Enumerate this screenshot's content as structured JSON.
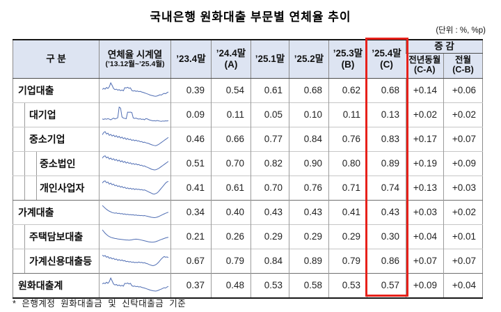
{
  "title": "국내은행 원화대출 부문별 연체율 추이",
  "unit_note": "(단위 : %, %p)",
  "footnote": "* 은행계정 원화대출금 및 신탁대출금 기준",
  "colors": {
    "header_bg": "#dde4f2",
    "highlight_red": "#e7211a",
    "spark_line": "#4f6db3",
    "table_border_dark": "#161616"
  },
  "table": {
    "headers": {
      "gubun": "구  분",
      "timeseries_line1": "연체율 시계열",
      "timeseries_line2": "(’13.12월~’25.4월)",
      "c234": "’23.4말",
      "c244_1": "’24.4말",
      "c244_2": "(A)",
      "c251": "’25.1말",
      "c252": "’25.2말",
      "c253_1": "’25.3말",
      "c253_2": "(B)",
      "c254_1": "’25.4말",
      "c254_2": "(C)",
      "change": "증 감",
      "yoy_1": "전년동월",
      "yoy_2": "(C-A)",
      "mom_1": "전월",
      "mom_2": "(C-B)"
    },
    "rows": [
      {
        "label": "기업대출",
        "level": 0,
        "group_start": false,
        "values": [
          "0.39",
          "0.54",
          "0.61",
          "0.68",
          "0.62",
          "0.68",
          "+0.14",
          "+0.06"
        ]
      },
      {
        "label": "대기업",
        "level": 1,
        "group_start": false,
        "values": [
          "0.09",
          "0.11",
          "0.05",
          "0.10",
          "0.11",
          "0.13",
          "+0.02",
          "+0.02"
        ]
      },
      {
        "label": "중소기업",
        "level": 1,
        "group_start": false,
        "values": [
          "0.46",
          "0.66",
          "0.77",
          "0.84",
          "0.76",
          "0.83",
          "+0.17",
          "+0.07"
        ]
      },
      {
        "label": "중소법인",
        "level": 2,
        "group_start": false,
        "values": [
          "0.51",
          "0.70",
          "0.82",
          "0.90",
          "0.80",
          "0.89",
          "+0.19",
          "+0.09"
        ]
      },
      {
        "label": "개인사업자",
        "level": 2,
        "group_start": false,
        "values": [
          "0.41",
          "0.61",
          "0.70",
          "0.76",
          "0.71",
          "0.74",
          "+0.13",
          "+0.03"
        ]
      },
      {
        "label": "가계대출",
        "level": 0,
        "group_start": true,
        "values": [
          "0.34",
          "0.40",
          "0.43",
          "0.43",
          "0.41",
          "0.43",
          "+0.03",
          "+0.02"
        ]
      },
      {
        "label": "주택담보대출",
        "level": 1,
        "group_start": false,
        "values": [
          "0.21",
          "0.26",
          "0.29",
          "0.29",
          "0.29",
          "0.30",
          "+0.04",
          "+0.01"
        ]
      },
      {
        "label": "가계신용대출등",
        "level": 1,
        "group_start": false,
        "values": [
          "0.67",
          "0.79",
          "0.84",
          "0.89",
          "0.79",
          "0.86",
          "+0.07",
          "+0.07"
        ]
      },
      {
        "label": "원화대출계",
        "level": 0,
        "group_start": true,
        "values": [
          "0.37",
          "0.48",
          "0.53",
          "0.58",
          "0.53",
          "0.57",
          "+0.09",
          "+0.04"
        ]
      }
    ],
    "sparklines_note": "normalized 0-100 approximate monthly delinquency-rate shapes, Dec 2013 - Apr 2025",
    "sparklines": [
      [
        56,
        63,
        58,
        68,
        62,
        72,
        95,
        80,
        62,
        55,
        58,
        52,
        55,
        49,
        53,
        48,
        67,
        65,
        69,
        63,
        66,
        50,
        47,
        49,
        45,
        47,
        43,
        45,
        41,
        39,
        36,
        33,
        30,
        27,
        23,
        21,
        19,
        17,
        16,
        18,
        21,
        25,
        23,
        29,
        33,
        31,
        37,
        41
      ],
      [
        26,
        23,
        27,
        24,
        28,
        25,
        21,
        26,
        31,
        26,
        29,
        33,
        96,
        90,
        38,
        31,
        29,
        27,
        66,
        65,
        66,
        64,
        32,
        29,
        31,
        27,
        25,
        27,
        23,
        25,
        21,
        28,
        26,
        22,
        19,
        17,
        15,
        16,
        14,
        17,
        15,
        13,
        12,
        14,
        13,
        15,
        14,
        16
      ],
      [
        76,
        90,
        95,
        81,
        86,
        73,
        79,
        69,
        75,
        65,
        71,
        61,
        67,
        57,
        63,
        53,
        59,
        49,
        55,
        47,
        51,
        43,
        47,
        41,
        45,
        39,
        41,
        35,
        37,
        31,
        33,
        29,
        27,
        25,
        21,
        18,
        15,
        13,
        12,
        15,
        19,
        25,
        31,
        37,
        43,
        49,
        55,
        61
      ],
      [
        82,
        93,
        96,
        84,
        89,
        77,
        83,
        73,
        79,
        69,
        75,
        65,
        71,
        61,
        67,
        57,
        63,
        53,
        59,
        51,
        55,
        47,
        51,
        45,
        49,
        43,
        45,
        39,
        41,
        35,
        37,
        31,
        29,
        25,
        21,
        17,
        15,
        13,
        14,
        17,
        21,
        27,
        33,
        39,
        45,
        51,
        57,
        63
      ],
      [
        79,
        89,
        92,
        81,
        85,
        73,
        79,
        69,
        73,
        63,
        67,
        59,
        63,
        55,
        59,
        51,
        55,
        47,
        51,
        45,
        49,
        43,
        47,
        41,
        45,
        41,
        43,
        39,
        41,
        37,
        39,
        35,
        31,
        27,
        23,
        19,
        15,
        14,
        17,
        21,
        29,
        39,
        49,
        59,
        69,
        79,
        86,
        89
      ],
      [
        91,
        83,
        75,
        68,
        62,
        57,
        53,
        49,
        47,
        45,
        47,
        43,
        45,
        41,
        43,
        39,
        41,
        37,
        39,
        36,
        37,
        35,
        36,
        33,
        35,
        32,
        33,
        31,
        32,
        30,
        31,
        29,
        27,
        25,
        23,
        21,
        20,
        19,
        20,
        22,
        25,
        29,
        33,
        37,
        41,
        45,
        48,
        51
      ],
      [
        91,
        81,
        71,
        63,
        56,
        51,
        47,
        44,
        42,
        40,
        39,
        37,
        36,
        35,
        34,
        33,
        32,
        31,
        31,
        30,
        31,
        32,
        34,
        35,
        36,
        35,
        34,
        32,
        30,
        28,
        26,
        24,
        22,
        20,
        19,
        18,
        18,
        19,
        21,
        24,
        27,
        31,
        34,
        37,
        40,
        43,
        45,
        47
      ],
      [
        86,
        79,
        83,
        73,
        77,
        67,
        71,
        63,
        67,
        59,
        63,
        55,
        59,
        53,
        57,
        51,
        53,
        47,
        49,
        45,
        47,
        43,
        45,
        41,
        43,
        41,
        45,
        41,
        43,
        39,
        41,
        37,
        35,
        31,
        28,
        25,
        23,
        25,
        29,
        35,
        43,
        53,
        63,
        71,
        77,
        73,
        75,
        71
      ],
      [
        59,
        65,
        61,
        69,
        63,
        73,
        94,
        77,
        59,
        53,
        56,
        49,
        53,
        47,
        51,
        46,
        63,
        61,
        65,
        59,
        63,
        49,
        45,
        47,
        43,
        45,
        41,
        43,
        39,
        37,
        35,
        32,
        29,
        26,
        23,
        21,
        19,
        18,
        17,
        19,
        22,
        26,
        29,
        33,
        37,
        35,
        41,
        45
      ]
    ]
  }
}
